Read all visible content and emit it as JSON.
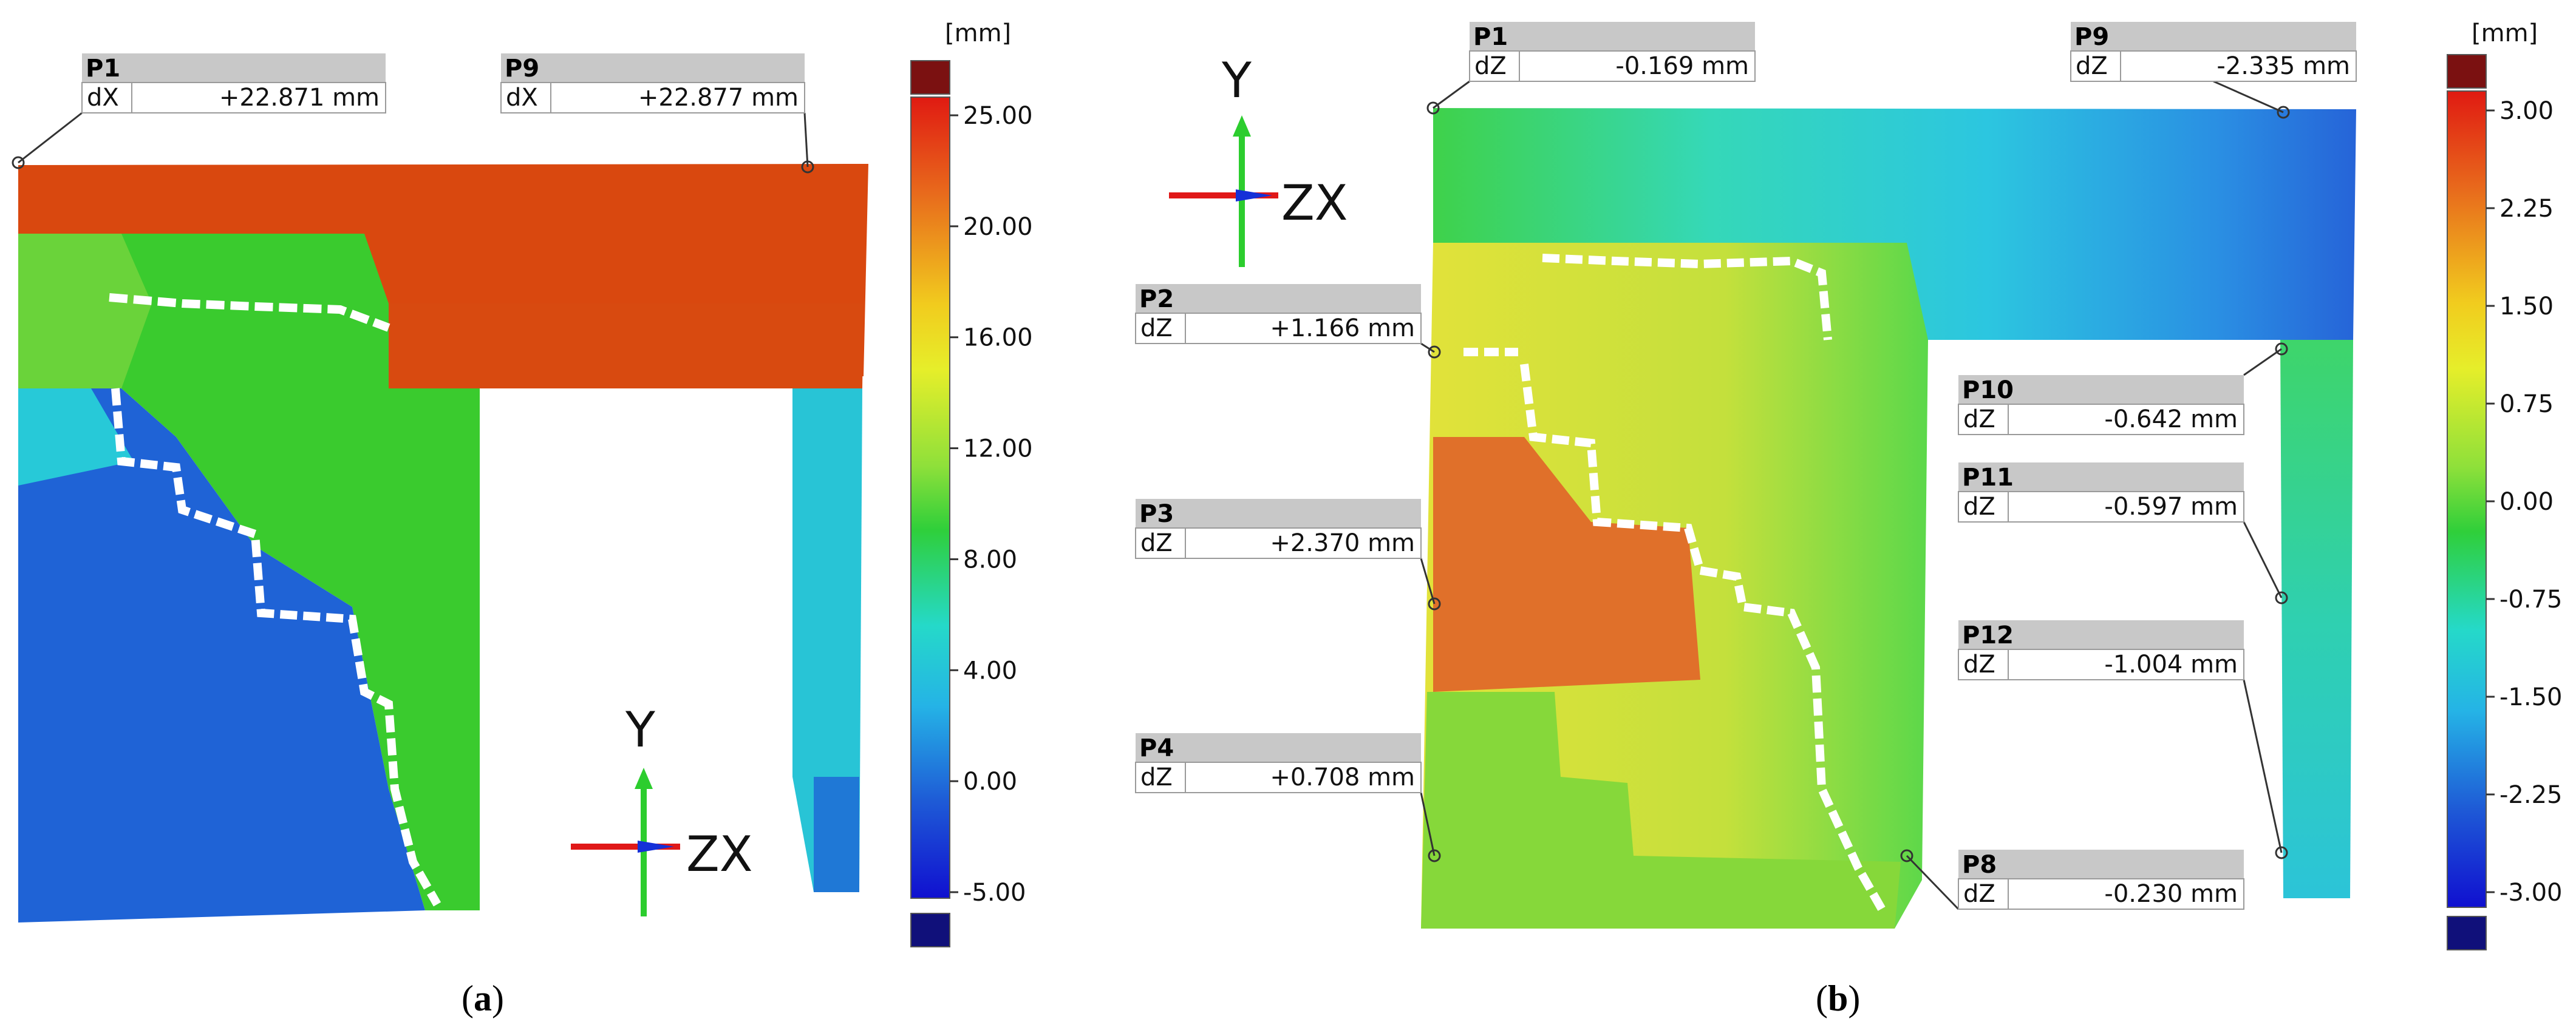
{
  "panel_a": {
    "caption_open": "(",
    "caption_letter": "a",
    "caption_close": ")",
    "unit": "[mm]",
    "scale_ticks": [
      "25.00",
      "20.00",
      "16.00",
      "12.00",
      "8.00",
      "4.00",
      "0.00",
      "-5.00"
    ],
    "axis_y": "Y",
    "axis_zx": "ZX",
    "labels": [
      {
        "name": "P1",
        "comp": "dX",
        "value": "+22.871 mm"
      },
      {
        "name": "P9",
        "comp": "dX",
        "value": "+22.877 mm"
      }
    ]
  },
  "panel_b": {
    "caption_open": "(",
    "caption_letter": "b",
    "caption_close": ")",
    "unit": "[mm]",
    "scale_ticks": [
      "3.00",
      "2.25",
      "1.50",
      "0.75",
      "0.00",
      "-0.75",
      "-1.50",
      "-2.25",
      "-3.00"
    ],
    "axis_y": "Y",
    "axis_zx": "ZX",
    "labels": [
      {
        "name": "P1",
        "comp": "dZ",
        "value": "-0.169 mm"
      },
      {
        "name": "P9",
        "comp": "dZ",
        "value": "-2.335 mm"
      },
      {
        "name": "P2",
        "comp": "dZ",
        "value": "+1.166 mm"
      },
      {
        "name": "P10",
        "comp": "dZ",
        "value": "-0.642 mm"
      },
      {
        "name": "P11",
        "comp": "dZ",
        "value": "-0.597 mm"
      },
      {
        "name": "P3",
        "comp": "dZ",
        "value": "+2.370 mm"
      },
      {
        "name": "P12",
        "comp": "dZ",
        "value": "-1.004 mm"
      },
      {
        "name": "P4",
        "comp": "dZ",
        "value": "+0.708 mm"
      },
      {
        "name": "P8",
        "comp": "dZ",
        "value": "-0.230 mm"
      }
    ]
  },
  "colors": {
    "red_top": "#d9480f",
    "green": "#33c92e",
    "blue": "#1f63d6",
    "cyan": "#27c9d8",
    "yellow": "#e3e63a",
    "orange": "#e0702a",
    "scale_top": "#7b1111",
    "scale_bottom": "#10107a"
  }
}
